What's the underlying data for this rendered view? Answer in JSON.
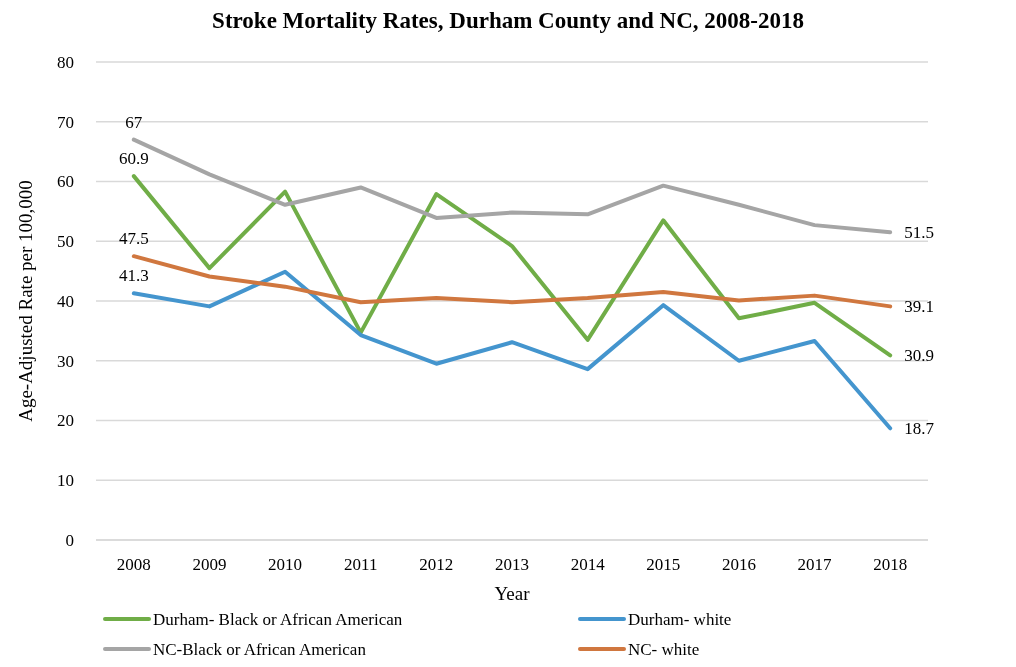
{
  "chart_data": {
    "type": "line",
    "title": "Stroke Mortality Rates, Durham County and NC, 2008-2018",
    "xlabel": "Year",
    "ylabel": "Age-Adjusted Rate per 100,000",
    "categories": [
      "2008",
      "2009",
      "2010",
      "2011",
      "2012",
      "2013",
      "2014",
      "2015",
      "2016",
      "2017",
      "2018"
    ],
    "series": [
      {
        "name": "Durham- Black or African American",
        "color": "#70ad47",
        "values": [
          60.9,
          45.5,
          58.3,
          34.7,
          57.9,
          49.2,
          33.5,
          53.5,
          37.1,
          39.7,
          30.9
        ],
        "value_labels": [
          "60.9",
          null,
          null,
          null,
          null,
          null,
          null,
          null,
          null,
          null,
          "30.9"
        ]
      },
      {
        "name": "Durham- white",
        "color": "#4495ce",
        "values": [
          41.3,
          39.1,
          44.9,
          34.3,
          29.5,
          33.1,
          28.6,
          39.3,
          30.0,
          33.3,
          18.7
        ],
        "value_labels": [
          "41.3",
          null,
          null,
          null,
          null,
          null,
          null,
          null,
          null,
          null,
          "18.7"
        ]
      },
      {
        "name": "NC-Black or African American",
        "color": "#a5a5a5",
        "values": [
          67,
          61.2,
          56.1,
          59.0,
          53.9,
          54.8,
          54.5,
          59.3,
          56.1,
          52.7,
          51.5
        ],
        "value_labels": [
          "67",
          null,
          null,
          null,
          null,
          null,
          null,
          null,
          null,
          null,
          "51.5"
        ]
      },
      {
        "name": "NC- white",
        "color": "#d0773f",
        "values": [
          47.5,
          44.1,
          42.4,
          39.8,
          40.5,
          39.8,
          40.5,
          41.5,
          40.1,
          40.9,
          39.1
        ],
        "value_labels": [
          "47.5",
          null,
          null,
          null,
          null,
          null,
          null,
          null,
          null,
          null,
          "39.1"
        ]
      }
    ],
    "ylim": [
      0,
      80
    ],
    "yticks": [
      0,
      10,
      20,
      30,
      40,
      50,
      60,
      70,
      80
    ],
    "grid": "y",
    "legend": "bottom",
    "marker": "none",
    "line_style": "solid"
  }
}
